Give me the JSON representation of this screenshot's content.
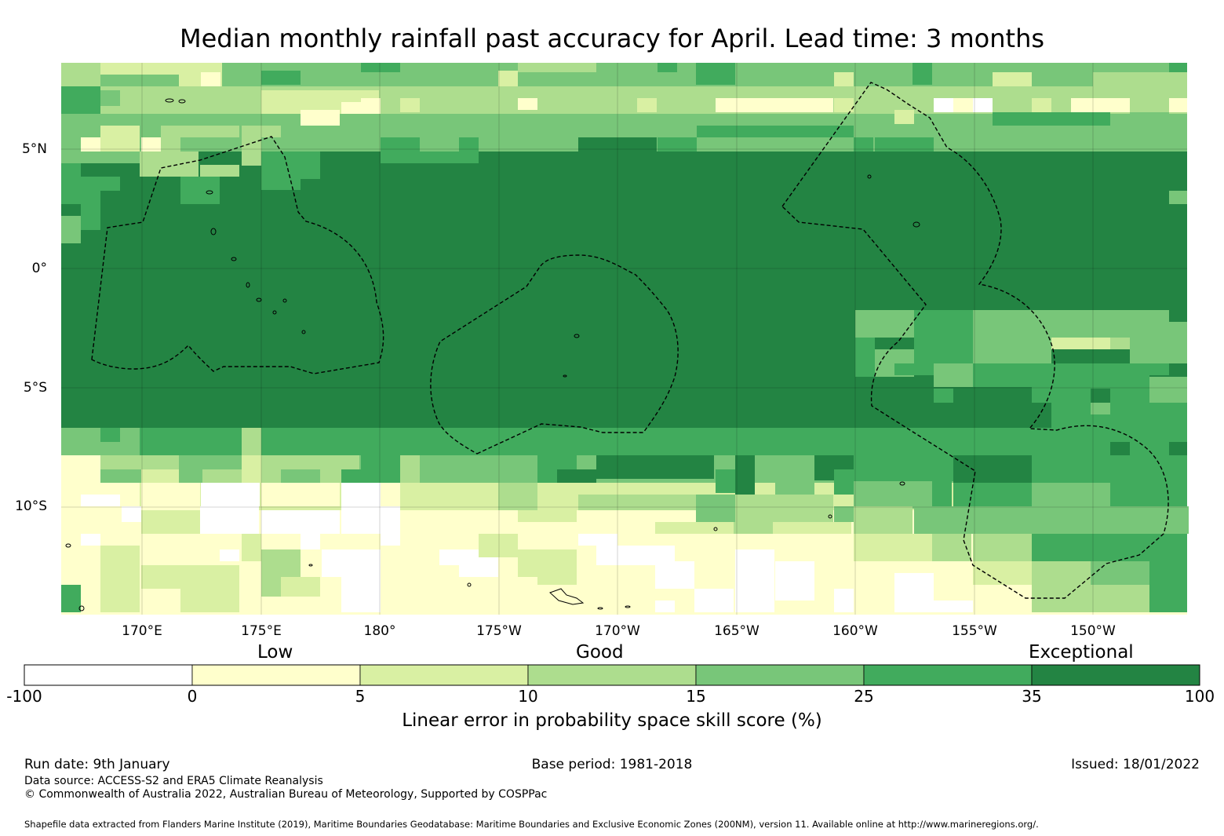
{
  "title": "Median monthly rainfall past accuracy for April. Lead time: 3 months",
  "map": {
    "lat_labels": [
      "5°N",
      "0°",
      "5°S",
      "10°S"
    ],
    "lon_labels": [
      "170°E",
      "175°E",
      "180°",
      "175°W",
      "170°W",
      "165°W",
      "160°W",
      "155°W",
      "150°W"
    ],
    "extent": {
      "lon_min": 166.5,
      "lon_max": 213.8,
      "lat_min": -14.6,
      "lat_max": 8.5
    }
  },
  "legend": {
    "category_labels": [
      "Low",
      "Good",
      "Exceptional"
    ],
    "bins": [
      {
        "from": "-100",
        "to": "0",
        "color": "#ffffff"
      },
      {
        "from": "0",
        "to": "5",
        "color": "#ffffcc"
      },
      {
        "from": "5",
        "to": "10",
        "color": "#d9f0a3"
      },
      {
        "from": "10",
        "to": "15",
        "color": "#addd8e"
      },
      {
        "from": "15",
        "to": "25",
        "color": "#78c679"
      },
      {
        "from": "25",
        "to": "35",
        "color": "#41ab5d"
      },
      {
        "from": "35",
        "to": "100",
        "color": "#238443"
      }
    ],
    "tick_labels": [
      "-100",
      "0",
      "5",
      "10",
      "15",
      "25",
      "35",
      "100"
    ],
    "title": "Linear error in probability space skill score (%)"
  },
  "footer": {
    "run_date": "Run date: 9th January",
    "base_period": "Base period: 1981-2018",
    "issued": "Issued: 18/01/2022",
    "data_source": "Data source: ACCESS-S2 and ERA5 Climate Reanalysis",
    "copyright": "© Commonwealth of Australia 2022, Australian Bureau of Meteorology, Supported by COSPPac",
    "shapefile_note": "Shapefile data extracted from Flanders Marine Institute (2019), Maritime Boundaries Geodatabase: Maritime Boundaries and Exclusive Economic Zones (200NM), version 11. Available online at http://www.marineregions.org/."
  }
}
